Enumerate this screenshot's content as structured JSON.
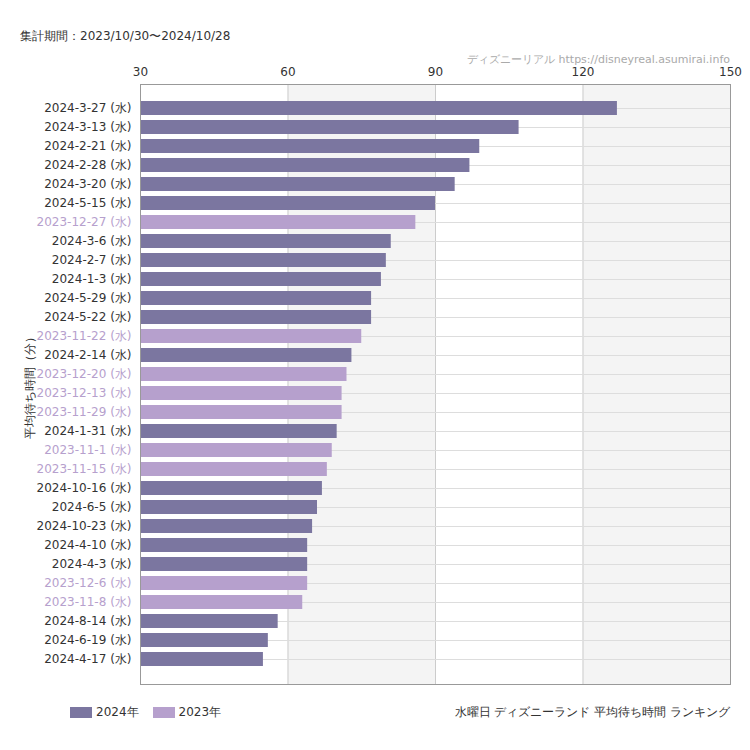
{
  "chart_data": {
    "type": "bar",
    "orientation": "horizontal",
    "title": "水曜日 ディズニーランド 平均待ち時間 ランキング",
    "subtitle": "集計期間：2023/10/30〜2024/10/28",
    "source": "ディズニーリアル https://disneyreal.asumirai.info",
    "y_label": "平均待ち時間（分）",
    "categories": [
      "2024-3-27 (水)",
      "2024-3-13 (水)",
      "2024-2-21 (水)",
      "2024-2-28 (水)",
      "2024-3-20 (水)",
      "2024-5-15 (水)",
      "2023-12-27 (水)",
      "2024-3-6 (水)",
      "2024-2-7 (水)",
      "2024-1-3 (水)",
      "2024-5-29 (水)",
      "2024-5-22 (水)",
      "2023-11-22 (水)",
      "2024-2-14 (水)",
      "2023-12-20 (水)",
      "2023-12-13 (水)",
      "2023-11-29 (水)",
      "2024-1-31 (水)",
      "2023-11-1 (水)",
      "2023-11-15 (水)",
      "2024-10-16 (水)",
      "2024-6-5 (水)",
      "2024-10-23 (水)",
      "2024-4-10 (水)",
      "2024-4-3 (水)",
      "2023-12-6 (水)",
      "2023-11-8 (水)",
      "2024-8-14 (水)",
      "2024-6-19 (水)",
      "2024-4-17 (水)"
    ],
    "series": [
      {
        "name": "2024年",
        "color": "#7b76a0",
        "values": [
          127,
          107,
          99,
          97,
          94,
          90,
          null,
          81,
          80,
          79,
          77,
          77,
          null,
          73,
          null,
          null,
          null,
          70,
          null,
          null,
          67,
          66,
          65,
          64,
          64,
          null,
          null,
          58,
          56,
          55
        ]
      },
      {
        "name": "2023年",
        "color": "#b6a0cd",
        "values": [
          null,
          null,
          null,
          null,
          null,
          null,
          86,
          null,
          null,
          null,
          null,
          null,
          75,
          null,
          72,
          71,
          71,
          null,
          69,
          68,
          null,
          null,
          null,
          null,
          null,
          64,
          63,
          null,
          null,
          null
        ]
      }
    ],
    "xlim": [
      30,
      150
    ],
    "xticks": [
      30,
      60,
      90,
      120,
      150
    ],
    "grid": true,
    "legend": "bottom-left"
  }
}
